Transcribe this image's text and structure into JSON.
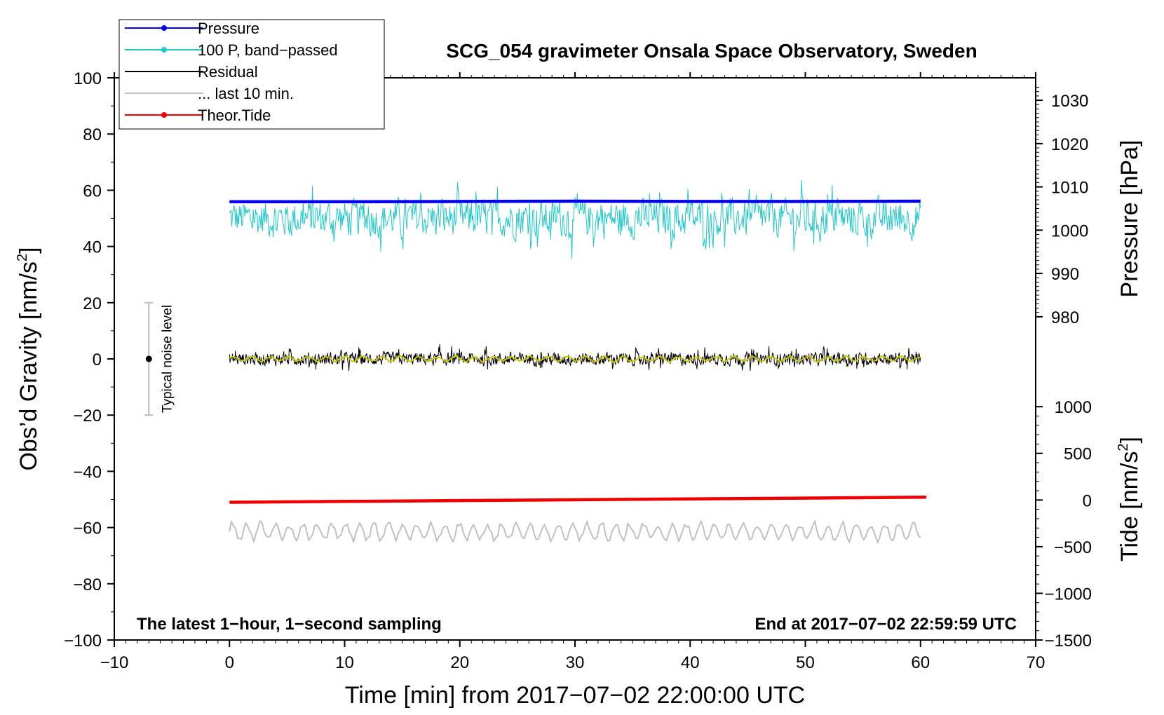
{
  "chart_data": {
    "type": "line",
    "title": "SCG_054 gravimeter Onsala Space Observatory, Sweden",
    "xlabel": "Time [min] from 2017−07−02 22:00:00 UTC",
    "ylabel_left_main": "Obs’d Gravity [nm/s",
    "ylabel_left_exp": "2",
    "ylabel_left_close": "]",
    "ylabel_right_top": "Pressure [hPa]",
    "ylabel_right_bottom_main": "Tide [nm/s",
    "ylabel_right_bottom_exp": "2",
    "ylabel_right_bottom_close": "]",
    "xlim": [
      -10,
      70
    ],
    "ylim": [
      -100,
      100
    ],
    "x_ticks": [
      -10,
      0,
      10,
      20,
      30,
      40,
      50,
      60,
      70
    ],
    "x_tick_labels": [
      "−10",
      "0",
      "10",
      "20",
      "30",
      "40",
      "50",
      "60",
      "70"
    ],
    "y_ticks": [
      100,
      80,
      60,
      40,
      20,
      0,
      -20,
      -40,
      -60,
      -80,
      -100
    ],
    "y_tick_labels": [
      "100",
      "80",
      "60",
      "40",
      "20",
      "0",
      "−20",
      "−40",
      "−60",
      "−80",
      "−100"
    ],
    "pressure_axis": {
      "range_hPa": [
        980,
        1030
      ],
      "gravity_equiv": [
        15,
        92
      ],
      "ticks": [
        1030,
        1020,
        1010,
        1000,
        990,
        980
      ],
      "tick_labels": [
        "1030",
        "1020",
        "1010",
        "1000",
        "990",
        "980"
      ]
    },
    "tide_axis": {
      "range": [
        -1500,
        1000
      ],
      "gravity_equiv": [
        -100,
        -17
      ],
      "ticks": [
        1000,
        500,
        0,
        -500,
        -1000,
        -1500
      ],
      "tick_labels": [
        "1000",
        "500",
        "0",
        "−500",
        "−1000",
        "−1500"
      ]
    },
    "legend": [
      {
        "name": "Pressure",
        "color": "#0000ee",
        "marker": true
      },
      {
        "name": "100 P, band−passed",
        "color": "#20c8c8",
        "marker": true
      },
      {
        "name": "Residual",
        "color": "#000000",
        "marker": false
      },
      {
        "name": "... last 10 min.",
        "color": "#c0c0c0",
        "marker": false
      },
      {
        "name": "Theor.Tide",
        "color": "#ee0000",
        "marker": true
      }
    ],
    "series": [
      {
        "name": "Pressure",
        "color": "#0000ee",
        "x": [
          0,
          10,
          20,
          30,
          40,
          50,
          60
        ],
        "y": [
          55.9,
          55.9,
          56.0,
          56.1,
          56.0,
          56.0,
          56.1
        ],
        "width": 4.5
      },
      {
        "name": "100 P, band−passed",
        "color": "#20c8c8",
        "x_range": [
          0,
          60
        ],
        "center": 50,
        "amplitude": 9,
        "width": 1
      },
      {
        "name": "Residual",
        "color": "#000000",
        "x_range": [
          0,
          60
        ],
        "center": 0,
        "amplitude": 3,
        "width": 1
      },
      {
        "name": "Residual smoothed",
        "color": "#c8c800",
        "x_range": [
          0,
          60
        ],
        "center": 0,
        "amplitude": 1.2,
        "width": 2
      },
      {
        "name": "... last 10 min.",
        "color": "#c0c0c0",
        "x_range": [
          0,
          60
        ],
        "center": -61.5,
        "amplitude": 4,
        "width": 2
      },
      {
        "name": "Theor.Tide",
        "color": "#ee0000",
        "x": [
          0,
          60.5
        ],
        "y": [
          -51,
          -49.2
        ],
        "width": 4.5
      }
    ],
    "noise_bar": {
      "label": "Typical noise level",
      "x": -7,
      "y": 0,
      "ymin": -20,
      "ymax": 20
    },
    "annotations": {
      "bottom_left": "The latest 1−hour, 1−second sampling",
      "bottom_right": "End at 2017−07−02 22:59:59 UTC"
    },
    "grid": false
  }
}
